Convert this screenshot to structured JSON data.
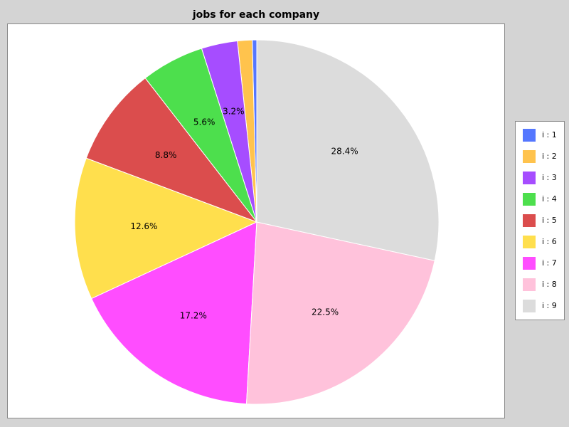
{
  "chart_data": {
    "type": "pie",
    "title": "jobs for each company",
    "slices": [
      {
        "label": "i : 1",
        "value": 0.4,
        "color": "#5577ff",
        "show_label": false
      },
      {
        "label": "i : 2",
        "value": 1.3,
        "color": "#ffc34d",
        "show_label": false
      },
      {
        "label": "i : 3",
        "value": 3.2,
        "color": "#a64dff",
        "show_label": true,
        "text": "3.2%"
      },
      {
        "label": "i : 4",
        "value": 5.6,
        "color": "#4ddf4d",
        "show_label": true,
        "text": "5.6%"
      },
      {
        "label": "i : 5",
        "value": 8.8,
        "color": "#db4d4d",
        "show_label": true,
        "text": "8.8%"
      },
      {
        "label": "i : 6",
        "value": 12.6,
        "color": "#ffdf4d",
        "show_label": true,
        "text": "12.6%"
      },
      {
        "label": "i : 7",
        "value": 17.2,
        "color": "#ff4dff",
        "show_label": true,
        "text": "17.2%"
      },
      {
        "label": "i : 8",
        "value": 22.5,
        "color": "#ffc2db",
        "show_label": true,
        "text": "22.5%"
      },
      {
        "label": "i : 9",
        "value": 28.4,
        "color": "#dcdcdc",
        "show_label": true,
        "text": "28.4%"
      }
    ],
    "start": "top",
    "direction": "counter-clockwise",
    "legend_position": "right"
  }
}
